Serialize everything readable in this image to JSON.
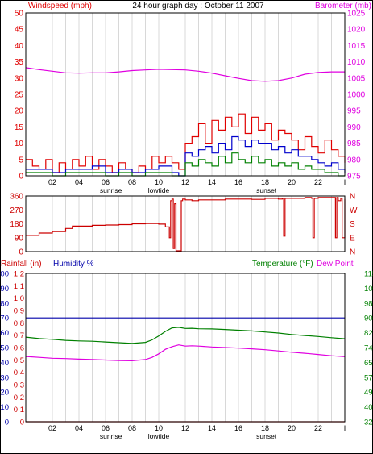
{
  "colors": {
    "wind": "#e00000",
    "gust_series_blue": "#0000cc",
    "wind_series_green": "#008000",
    "barometer": "#e000e0",
    "direction": "#cc0000",
    "rainfall": "#cc0000",
    "humidity": "#0000aa",
    "temperature": "#008000",
    "dewpoint": "#e000e0",
    "grid": "#d8d8d8",
    "frame": "#000000"
  },
  "chart_data": [
    {
      "type": "line",
      "id": "wind-barometer",
      "title": "24 hour graph day : October 11 2007",
      "ylabel": "Windspeed (mph)",
      "y2label": "Barometer (mb)",
      "ylim": [
        0,
        50
      ],
      "yticks": [
        "0",
        "5",
        "10",
        "15",
        "20",
        "25",
        "30",
        "35",
        "40",
        "45",
        "50"
      ],
      "y2lim": [
        975,
        1025
      ],
      "y2ticks": [
        "975",
        "980",
        "985",
        "990",
        "995",
        "1000",
        "1005",
        "1010",
        "1015",
        "1020",
        "1025"
      ],
      "xlim": [
        0,
        24
      ],
      "xticks": [
        {
          "x": 2,
          "label": "02"
        },
        {
          "x": 4,
          "label": "04"
        },
        {
          "x": 6,
          "label": "06"
        },
        {
          "x": 8,
          "label": "08"
        },
        {
          "x": 10,
          "label": "10"
        },
        {
          "x": 12,
          "label": "12"
        },
        {
          "x": 14,
          "label": "14"
        },
        {
          "x": 16,
          "label": "16"
        },
        {
          "x": 18,
          "label": "18"
        },
        {
          "x": 20,
          "label": "20"
        },
        {
          "x": 22,
          "label": "22"
        },
        {
          "x": 24,
          "label": "I"
        }
      ],
      "annotations": [
        {
          "x": 6.4,
          "label": "sunrise"
        },
        {
          "x": 10,
          "label": "lowtide"
        },
        {
          "x": 18.1,
          "label": "sunset"
        }
      ],
      "series": [
        {
          "key": "gust",
          "axis": "y",
          "color": "#e00000",
          "x": [
            0,
            0.5,
            1,
            1.5,
            2,
            2.5,
            3,
            3.5,
            4,
            4.5,
            5,
            5.5,
            6,
            6.5,
            7,
            7.5,
            8,
            8.5,
            9,
            9.5,
            10,
            10.5,
            11,
            11.5,
            12,
            12.5,
            13,
            13.5,
            14,
            14.5,
            15,
            15.5,
            16,
            16.5,
            17,
            17.5,
            18,
            18.5,
            19,
            19.5,
            20,
            20.5,
            21,
            21.5,
            22,
            22.5,
            23,
            23.5,
            24
          ],
          "values": [
            5,
            3,
            2,
            5,
            1,
            4,
            2,
            5,
            3,
            6,
            2,
            5,
            3,
            1,
            4,
            2,
            1,
            3,
            2,
            6,
            4,
            6,
            4,
            2,
            10,
            12,
            16,
            10,
            17,
            14,
            18,
            15,
            19,
            13,
            18,
            14,
            16,
            11,
            14,
            13,
            11,
            8,
            12,
            9,
            7,
            11,
            8,
            6,
            4
          ]
        },
        {
          "key": "average",
          "axis": "y",
          "color": "#0000cc",
          "x": [
            0,
            1,
            2,
            3,
            4,
            5,
            6,
            7,
            8,
            9,
            10,
            11,
            11.5,
            12,
            12.5,
            13,
            13.5,
            14,
            14.5,
            15,
            15.5,
            16,
            16.5,
            17,
            17.5,
            18,
            18.5,
            19,
            19.5,
            20,
            20.5,
            21,
            21.5,
            22,
            22.5,
            23,
            23.5,
            24
          ],
          "values": [
            2,
            2,
            1,
            2,
            2,
            3,
            1,
            2,
            1,
            2,
            3,
            1,
            0,
            7,
            6,
            8,
            9,
            7,
            10,
            8,
            12,
            11,
            9,
            11,
            10,
            10,
            8,
            9,
            7,
            8,
            6,
            6,
            5,
            4,
            3,
            4,
            2,
            1
          ]
        },
        {
          "key": "wind",
          "axis": "y",
          "color": "#008000",
          "x": [
            0,
            1,
            2,
            3,
            4,
            5,
            6,
            7,
            8,
            9,
            10,
            11,
            11.5,
            12,
            12.5,
            13,
            13.5,
            14,
            14.5,
            15,
            15.5,
            16,
            16.5,
            17,
            17.5,
            18,
            18.5,
            19,
            19.5,
            20,
            20.5,
            21,
            21.5,
            22,
            22.5,
            23,
            23.5,
            24
          ],
          "values": [
            1,
            1,
            0,
            1,
            1,
            1,
            0,
            1,
            0,
            1,
            1,
            0,
            0,
            4,
            3,
            5,
            4,
            3,
            6,
            4,
            7,
            5,
            4,
            6,
            4,
            5,
            3,
            4,
            3,
            4,
            2,
            3,
            2,
            2,
            1,
            1,
            0,
            0
          ]
        },
        {
          "key": "barometer",
          "axis": "y2",
          "color": "#e000e0",
          "x": [
            0,
            1,
            2,
            3,
            4,
            5,
            6,
            7,
            8,
            9,
            10,
            11,
            12,
            13,
            14,
            15,
            16,
            17,
            18,
            19,
            20,
            21,
            22,
            23,
            24
          ],
          "values": [
            1008.2,
            1007.6,
            1007.1,
            1006.6,
            1006.5,
            1006.6,
            1006.6,
            1006.9,
            1007.3,
            1007.5,
            1007.7,
            1007.6,
            1007.5,
            1007.1,
            1006.5,
            1005.7,
            1004.9,
            1004.2,
            1004.0,
            1004.2,
            1005.0,
            1006.2,
            1006.7,
            1006.9,
            1006.9
          ]
        }
      ]
    },
    {
      "type": "line",
      "id": "wind-direction",
      "ylim": [
        0,
        360
      ],
      "yticks": [
        "0",
        "90",
        "180",
        "270",
        "360"
      ],
      "y2labels": [
        "N",
        "E",
        "S",
        "W",
        "N"
      ],
      "xlim": [
        0,
        24
      ],
      "series": [
        {
          "key": "direction",
          "color": "#cc0000",
          "x": [
            0,
            1,
            2,
            3,
            3.5,
            4,
            5,
            6,
            7,
            8,
            9,
            10,
            10.5,
            10.8,
            10.9,
            11,
            11.1,
            11.2,
            11.3,
            11.5,
            11.7,
            11.8,
            12,
            12.5,
            13,
            14,
            15,
            16,
            17,
            18,
            19,
            19.3,
            19.4,
            19.5,
            20,
            21,
            21.5,
            21.6,
            21.7,
            22,
            22.5,
            23,
            23.3,
            23.4,
            23.5,
            23.7,
            23.8,
            24
          ],
          "values": [
            105,
            120,
            130,
            150,
            165,
            165,
            170,
            172,
            175,
            180,
            182,
            178,
            160,
            90,
            330,
            340,
            20,
            310,
            5,
            5,
            330,
            340,
            335,
            330,
            335,
            335,
            340,
            340,
            338,
            345,
            340,
            345,
            100,
            345,
            345,
            350,
            345,
            90,
            345,
            350,
            350,
            350,
            90,
            350,
            330,
            345,
            90,
            340
          ]
        }
      ]
    },
    {
      "type": "line",
      "id": "temp-humidity-rain",
      "ylabel": "Rainfall (in)",
      "ylabel2": "Humidity %",
      "y2label": "Temperature (°F)",
      "y2label2": "Dew Point",
      "rain_ticks": [
        "0",
        "0.1",
        "0.2",
        "0.3",
        "0.4",
        "0.5",
        "0.6",
        "0.7",
        "0.8",
        "0.9",
        "1.0",
        "1.1",
        "1.2"
      ],
      "humidity_ticks": [
        "0",
        "10",
        "20",
        "30",
        "40",
        "50",
        "60",
        "70",
        "80",
        "90",
        "100"
      ],
      "temp_ticks": [
        "32",
        "40",
        "49",
        "57",
        "65",
        "74",
        "82",
        "90",
        "98",
        "107",
        "115"
      ],
      "ylim": [
        0,
        100
      ],
      "y2lim": [
        32,
        115
      ],
      "xlim": [
        0,
        24
      ],
      "xticks": [
        {
          "x": 2,
          "label": "02"
        },
        {
          "x": 4,
          "label": "04"
        },
        {
          "x": 6,
          "label": "06"
        },
        {
          "x": 8,
          "label": "08"
        },
        {
          "x": 10,
          "label": "10"
        },
        {
          "x": 12,
          "label": "12"
        },
        {
          "x": 14,
          "label": "14"
        },
        {
          "x": 16,
          "label": "16"
        },
        {
          "x": 18,
          "label": "18"
        },
        {
          "x": 20,
          "label": "20"
        },
        {
          "x": 22,
          "label": "22"
        },
        {
          "x": 24,
          "label": "I"
        }
      ],
      "annotations": [
        {
          "x": 6.4,
          "label": "sunrise"
        },
        {
          "x": 10,
          "label": "lowtide"
        },
        {
          "x": 18.1,
          "label": "sunset"
        }
      ],
      "series": [
        {
          "key": "humidity",
          "axis": "humidity",
          "color": "#0000aa",
          "x": [
            0,
            24
          ],
          "values": [
            70,
            70
          ]
        },
        {
          "key": "rainfall",
          "axis": "rain",
          "color": "#cc0000",
          "x": [
            0,
            24
          ],
          "values": [
            0,
            0
          ]
        },
        {
          "key": "temperature",
          "axis": "temp",
          "color": "#008000",
          "x": [
            0,
            1,
            2,
            3,
            4,
            5,
            6,
            7,
            8,
            9,
            9.5,
            10,
            10.5,
            11,
            11.5,
            12,
            12.5,
            13,
            14,
            15,
            16,
            17,
            18,
            19,
            20,
            21,
            22,
            23,
            24
          ],
          "values": [
            79.3,
            78.5,
            78.1,
            77.5,
            77.2,
            77.0,
            76.6,
            76.2,
            75.8,
            76.4,
            77.8,
            80.0,
            82.5,
            84.5,
            84.8,
            84.2,
            84.3,
            84.0,
            83.9,
            83.6,
            83.2,
            82.8,
            82.2,
            81.6,
            80.8,
            80.2,
            79.7,
            79.0,
            78.4
          ]
        },
        {
          "key": "dewpoint",
          "axis": "temp",
          "color": "#e000e0",
          "x": [
            0,
            1,
            2,
            3,
            4,
            5,
            6,
            7,
            8,
            9,
            9.5,
            10,
            10.5,
            11,
            11.5,
            12,
            12.5,
            13,
            14,
            15,
            16,
            17,
            18,
            19,
            20,
            21,
            22,
            23,
            24
          ],
          "values": [
            68.5,
            68.0,
            67.5,
            67.3,
            67.0,
            66.8,
            66.5,
            66.2,
            66.1,
            66.8,
            68.0,
            70.0,
            72.5,
            74.0,
            75.0,
            74.3,
            74.5,
            74.3,
            73.8,
            73.5,
            73.2,
            72.8,
            72.3,
            71.6,
            70.9,
            70.3,
            69.6,
            68.9,
            68.4
          ]
        }
      ]
    }
  ]
}
